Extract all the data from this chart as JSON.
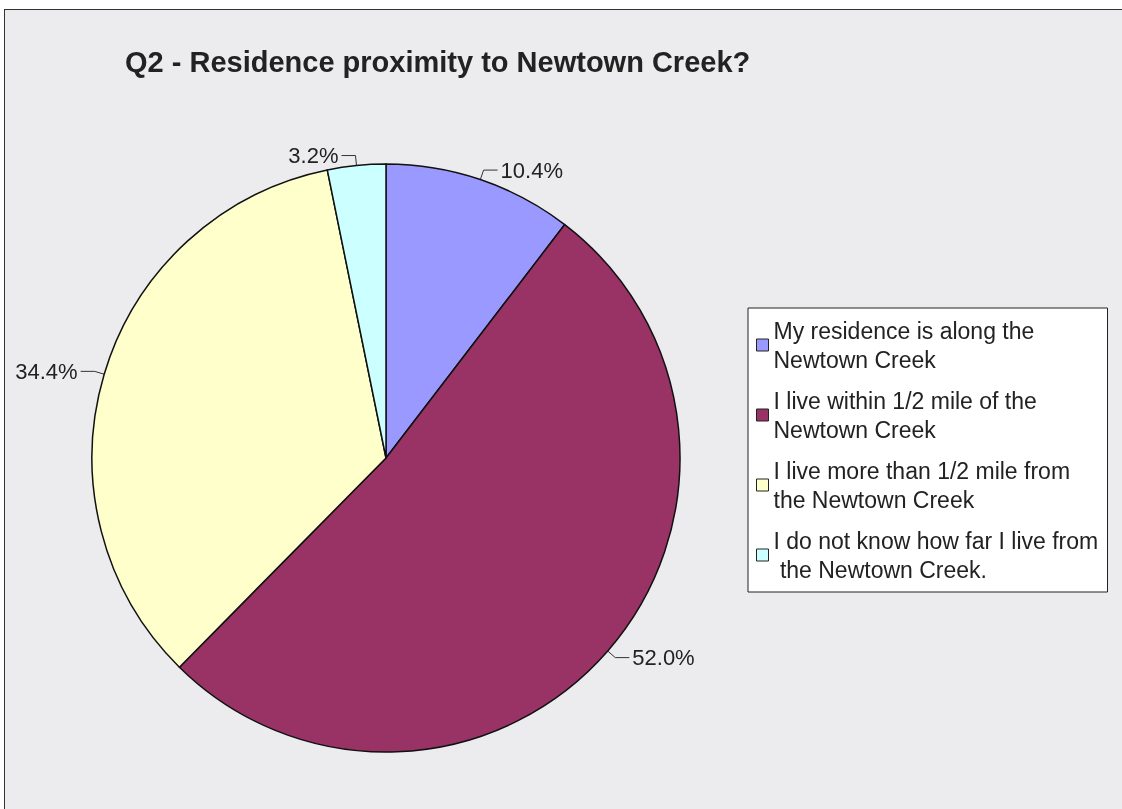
{
  "chart_data": {
    "type": "pie",
    "title": "Q2 - Residence proximity to Newtown Creek?",
    "categories": [
      "My residence is along the Newtown Creek",
      "I live within 1/2 mile of the Newtown Creek",
      "I live more than 1/2 mile from the Newtown Creek",
      "I do not know how far I live from the Newtown Creek."
    ],
    "values": [
      10.4,
      52.0,
      34.4,
      3.2
    ],
    "colors": [
      "#9999ff",
      "#993366",
      "#ffffcc",
      "#ccffff"
    ],
    "value_labels": [
      "10.4%",
      "52.0%",
      "34.4%",
      "3.2%"
    ],
    "legend": "right"
  }
}
